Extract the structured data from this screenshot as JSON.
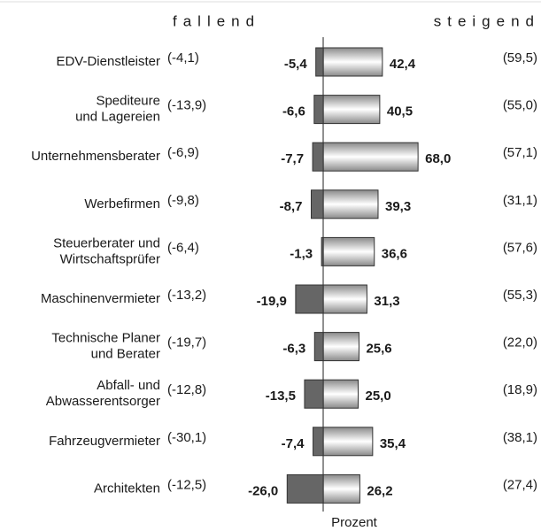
{
  "chart_data": {
    "type": "diverging-bar",
    "legend": [
      "fallend",
      "steigend"
    ],
    "xlabel": "Prozent",
    "xlim": [
      -30,
      80
    ],
    "categories": [
      [
        "EDV-Dienstleister"
      ],
      [
        "Spediteure",
        "und Lagereien"
      ],
      [
        "Unternehmensberater"
      ],
      [
        "Werbefirmen"
      ],
      [
        "Steuerberater und",
        "Wirtschaftsprüfer"
      ],
      [
        "Maschinenvermieter"
      ],
      [
        "Technische Planer",
        "und Berater"
      ],
      [
        "Abfall- und",
        "Abwasserentsorger"
      ],
      [
        "Fahrzeugvermieter"
      ],
      [
        "Architekten"
      ]
    ],
    "series": [
      {
        "name": "fallend",
        "color": "#666666",
        "values": [
          -5.4,
          -6.6,
          -7.7,
          -8.7,
          -1.3,
          -19.9,
          -6.3,
          -13.5,
          -7.4,
          -26.0
        ],
        "value_labels": [
          "-5,4",
          "-6,6",
          "-7,7",
          "-8,7",
          "-1,3",
          "-19,9",
          "-6,3",
          "-13,5",
          "-7,4",
          "-26,0"
        ],
        "previous": [
          -4.1,
          -13.9,
          -6.9,
          -9.8,
          -6.4,
          -13.2,
          -19.7,
          -12.8,
          -30.1,
          -12.5
        ],
        "previous_labels": [
          "(-4,1)",
          "(-13,9)",
          "(-6,9)",
          "(-9,8)",
          "(-6,4)",
          "(-13,2)",
          "(-19,7)",
          "(-12,8)",
          "(-30,1)",
          "(-12,5)"
        ]
      },
      {
        "name": "steigend",
        "color": "#9a9a9a",
        "values": [
          42.4,
          40.5,
          68.0,
          39.3,
          36.6,
          31.3,
          25.6,
          25.0,
          35.4,
          26.2
        ],
        "value_labels": [
          "42,4",
          "40,5",
          "68,0",
          "39,3",
          "36,6",
          "31,3",
          "25,6",
          "25,0",
          "35,4",
          "26,2"
        ],
        "previous": [
          59.5,
          55.0,
          57.1,
          31.1,
          57.6,
          55.3,
          22.0,
          18.9,
          38.1,
          27.4
        ],
        "previous_labels": [
          "(59,5)",
          "(55,0)",
          "(57,1)",
          "(31,1)",
          "(57,6)",
          "(55,3)",
          "(22,0)",
          "(18,9)",
          "(38,1)",
          "(27,4)"
        ]
      }
    ]
  }
}
